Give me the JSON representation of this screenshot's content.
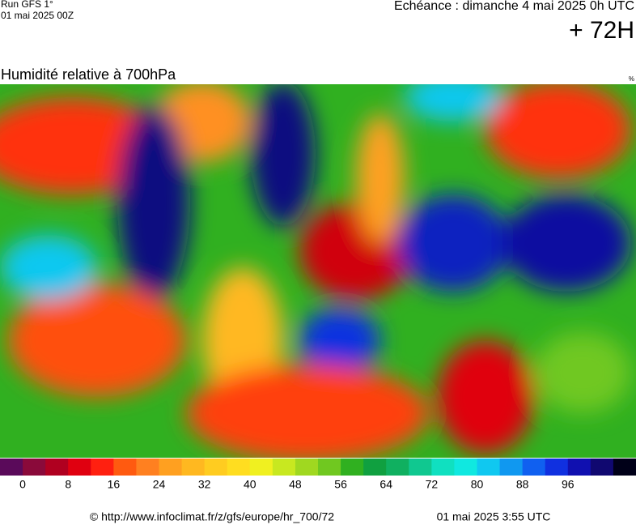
{
  "header": {
    "run": "Run GFS 1°",
    "run_date": "01 mai 2025 00Z",
    "forecast": "Echéance : dimanche 4 mai 2025 0h UTC",
    "lead": "+ 72H"
  },
  "map": {
    "title": "Humidité relative à 700hPa",
    "unit": "%"
  },
  "colorbar": {
    "colors": [
      "#5a0a5a",
      "#8a0a3a",
      "#b00020",
      "#e00010",
      "#ff2010",
      "#ff5a10",
      "#ff8020",
      "#ffa020",
      "#ffb820",
      "#ffcc20",
      "#ffdd20",
      "#f0f020",
      "#c8e820",
      "#a0d820",
      "#70c820",
      "#30b020",
      "#10a040",
      "#10b060",
      "#10c890",
      "#10e0c0",
      "#10e8e0",
      "#10c8f0",
      "#1098f0",
      "#1060f0",
      "#1030e0",
      "#1010b0",
      "#100870",
      "#000018"
    ],
    "labels": [
      0,
      8,
      16,
      24,
      32,
      40,
      48,
      56,
      64,
      72,
      80,
      88,
      96
    ]
  },
  "footer": {
    "source": "© http://www.infoclimat.fr/z/gfs/europe/hr_700/72",
    "generated": "01 mai 2025  3:55 UTC"
  }
}
